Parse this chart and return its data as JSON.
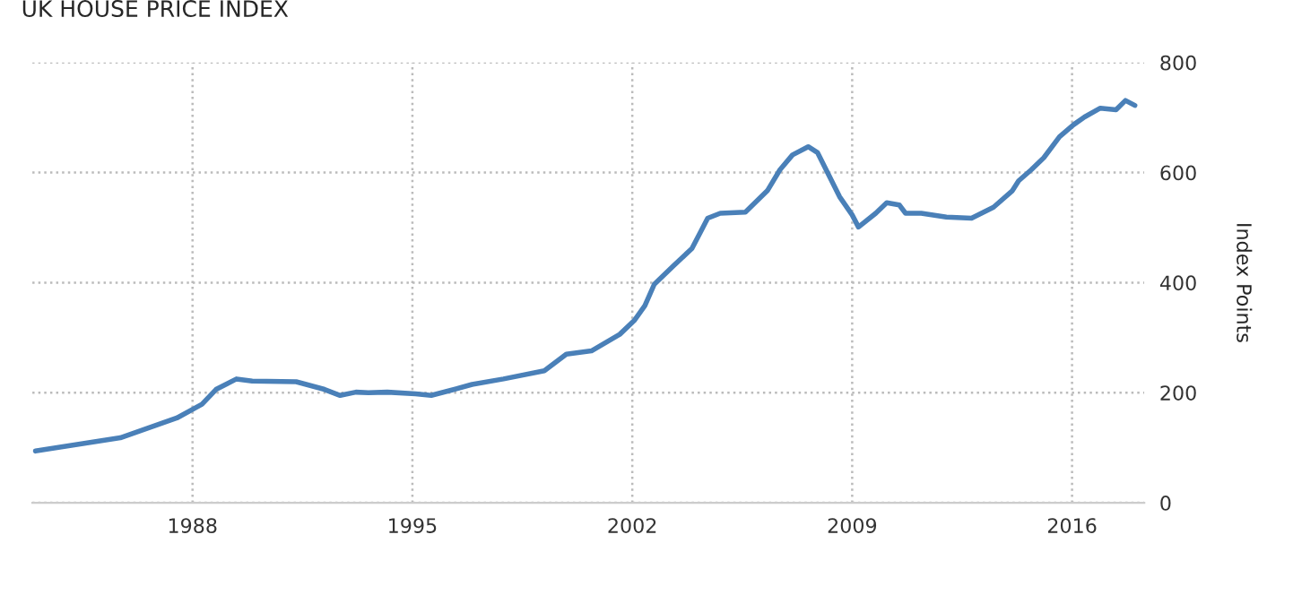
{
  "chart_data": {
    "type": "line",
    "title": "UK HOUSE PRICE INDEX",
    "ylabel": "Index Points",
    "x": [
      1983.0,
      1985.7,
      1987.5,
      1988.3,
      1988.75,
      1989.4,
      1989.9,
      1991.3,
      1992.2,
      1992.7,
      1993.2,
      1993.6,
      1994.2,
      1995.1,
      1995.6,
      1996.2,
      1996.9,
      1997.9,
      1999.2,
      1999.9,
      2000.7,
      2001.6,
      2002.06,
      2002.4,
      2002.7,
      2003.3,
      2003.9,
      2004.4,
      2004.8,
      2005.6,
      2006.3,
      2006.7,
      2007.1,
      2007.6,
      2007.9,
      2008.6,
      2009.0,
      2009.2,
      2009.75,
      2010.1,
      2010.5,
      2010.7,
      2011.2,
      2012.0,
      2012.8,
      2013.5,
      2014.1,
      2014.3,
      2014.7,
      2015.1,
      2015.6,
      2016.05,
      2016.4,
      2016.9,
      2017.4,
      2017.7,
      2018.0
    ],
    "series": [
      {
        "color": "#4a80b8",
        "values": [
          94,
          118,
          154,
          179,
          206,
          225,
          221,
          220,
          206,
          195,
          201,
          200,
          201,
          198,
          195,
          204,
          215,
          225,
          240,
          270,
          276,
          306,
          331,
          358,
          397,
          430,
          462,
          517,
          526,
          528,
          567,
          605,
          632,
          647,
          636,
          556,
          523,
          501,
          526,
          545,
          541,
          526,
          526,
          519,
          517,
          537,
          567,
          585,
          605,
          627,
          665,
          687,
          701,
          717,
          714,
          731,
          722
        ]
      }
    ],
    "xlim": [
      1982.9,
      2018.3
    ],
    "xticks": [
      1988,
      1995,
      2002,
      2009,
      2016
    ],
    "ylim": [
      0,
      800
    ],
    "yticks": [
      0,
      200,
      400,
      600,
      800
    ],
    "grid": true,
    "line_style": "solid",
    "marker": "none",
    "legend": false
  }
}
